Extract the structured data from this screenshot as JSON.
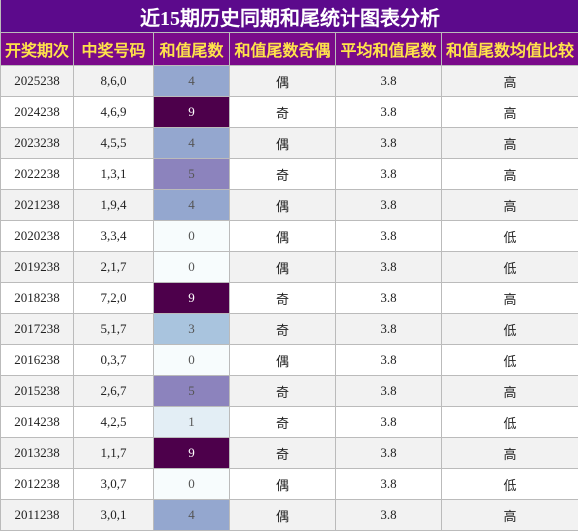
{
  "title": "近15期历史同期和尾统计图表分析",
  "table": {
    "headers": [
      "开奖期次",
      "中奖号码",
      "和值尾数",
      "和值尾数奇偶",
      "平均和值尾数",
      "和值尾数均值比较"
    ],
    "rows": [
      [
        "2025238",
        "8,6,0",
        4,
        "偶",
        3.8,
        "高"
      ],
      [
        "2024238",
        "4,6,9",
        9,
        "奇",
        3.8,
        "高"
      ],
      [
        "2023238",
        "4,5,5",
        4,
        "偶",
        3.8,
        "高"
      ],
      [
        "2022238",
        "1,3,1",
        5,
        "奇",
        3.8,
        "高"
      ],
      [
        "2021238",
        "1,9,4",
        4,
        "偶",
        3.8,
        "高"
      ],
      [
        "2020238",
        "3,3,4",
        0,
        "偶",
        3.8,
        "低"
      ],
      [
        "2019238",
        "2,1,7",
        0,
        "偶",
        3.8,
        "低"
      ],
      [
        "2018238",
        "7,2,0",
        9,
        "奇",
        3.8,
        "高"
      ],
      [
        "2017238",
        "5,1,7",
        3,
        "奇",
        3.8,
        "低"
      ],
      [
        "2016238",
        "0,3,7",
        0,
        "偶",
        3.8,
        "低"
      ],
      [
        "2015238",
        "2,6,7",
        5,
        "奇",
        3.8,
        "高"
      ],
      [
        "2014238",
        "4,2,5",
        1,
        "奇",
        3.8,
        "低"
      ],
      [
        "2013238",
        "1,1,7",
        9,
        "奇",
        3.8,
        "高"
      ],
      [
        "2012238",
        "3,0,7",
        0,
        "偶",
        3.8,
        "低"
      ],
      [
        "2011238",
        "3,0,1",
        4,
        "偶",
        3.8,
        "高"
      ]
    ]
  }
}
